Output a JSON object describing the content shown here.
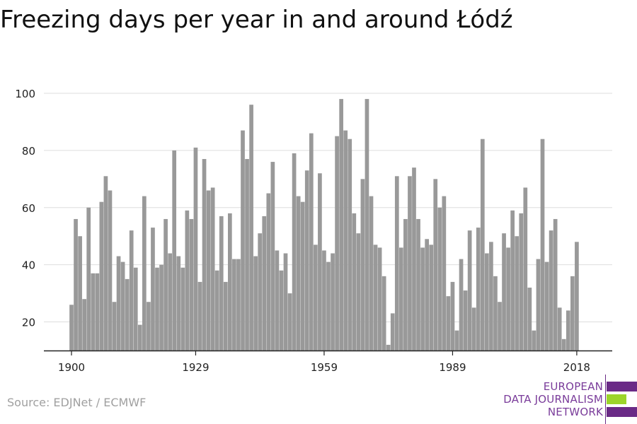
{
  "title": "Freezing days per year in and around Łódź",
  "source": "Source: EDJNet / ECMWF",
  "logo": {
    "lines": [
      "EUROPEAN",
      "DATA JOURNALISM",
      "NETWORK"
    ],
    "text_color": "#7a3c9a",
    "purple": "#6a2a86",
    "green": "#9cd42a"
  },
  "colors": {
    "bar": "#999999",
    "grid": "#dddddd",
    "axis": "#222222",
    "tick_text": "#222222"
  },
  "chart_data": {
    "type": "bar",
    "title": "Freezing days per year in and around Łódź",
    "xlabel": "",
    "ylabel": "",
    "x": [
      1900,
      1901,
      1902,
      1903,
      1904,
      1905,
      1906,
      1907,
      1908,
      1909,
      1910,
      1911,
      1912,
      1913,
      1914,
      1915,
      1916,
      1917,
      1918,
      1919,
      1920,
      1921,
      1922,
      1923,
      1924,
      1925,
      1926,
      1927,
      1928,
      1929,
      1930,
      1931,
      1932,
      1933,
      1934,
      1935,
      1936,
      1937,
      1938,
      1939,
      1940,
      1941,
      1942,
      1943,
      1944,
      1945,
      1946,
      1947,
      1948,
      1949,
      1950,
      1951,
      1952,
      1953,
      1954,
      1955,
      1956,
      1957,
      1958,
      1959,
      1960,
      1961,
      1962,
      1963,
      1964,
      1965,
      1966,
      1967,
      1968,
      1969,
      1970,
      1971,
      1972,
      1973,
      1974,
      1975,
      1976,
      1977,
      1978,
      1979,
      1980,
      1981,
      1982,
      1983,
      1984,
      1985,
      1986,
      1987,
      1988,
      1989,
      1990,
      1991,
      1992,
      1993,
      1994,
      1995,
      1996,
      1997,
      1998,
      1999,
      2000,
      2001,
      2002,
      2003,
      2004,
      2005,
      2006,
      2007,
      2008,
      2009,
      2010,
      2011,
      2012,
      2013,
      2014,
      2015,
      2016,
      2017,
      2018
    ],
    "values": [
      26,
      56,
      50,
      28,
      60,
      37,
      37,
      62,
      71,
      66,
      27,
      43,
      41,
      35,
      52,
      39,
      19,
      64,
      27,
      53,
      39,
      40,
      56,
      44,
      80,
      43,
      39,
      59,
      56,
      81,
      34,
      77,
      66,
      67,
      38,
      57,
      34,
      58,
      42,
      42,
      87,
      77,
      96,
      43,
      51,
      57,
      65,
      76,
      45,
      38,
      44,
      30,
      79,
      64,
      62,
      73,
      86,
      47,
      72,
      45,
      41,
      44,
      85,
      98,
      87,
      84,
      58,
      51,
      70,
      98,
      64,
      47,
      46,
      36,
      12,
      23,
      71,
      46,
      56,
      71,
      74,
      56,
      46,
      49,
      47,
      70,
      60,
      64,
      29,
      34,
      17,
      42,
      31,
      52,
      25,
      53,
      84,
      44,
      48,
      36,
      27,
      51,
      46,
      59,
      50,
      58,
      67,
      32,
      17,
      42,
      84,
      41,
      52,
      56,
      25,
      14,
      24,
      36,
      48
    ],
    "xticks": [
      1900,
      1929,
      1959,
      1989,
      2018
    ],
    "yticks": [
      20,
      40,
      60,
      80,
      100
    ],
    "ylim": [
      10,
      100
    ],
    "grid": true,
    "legend": "none"
  }
}
